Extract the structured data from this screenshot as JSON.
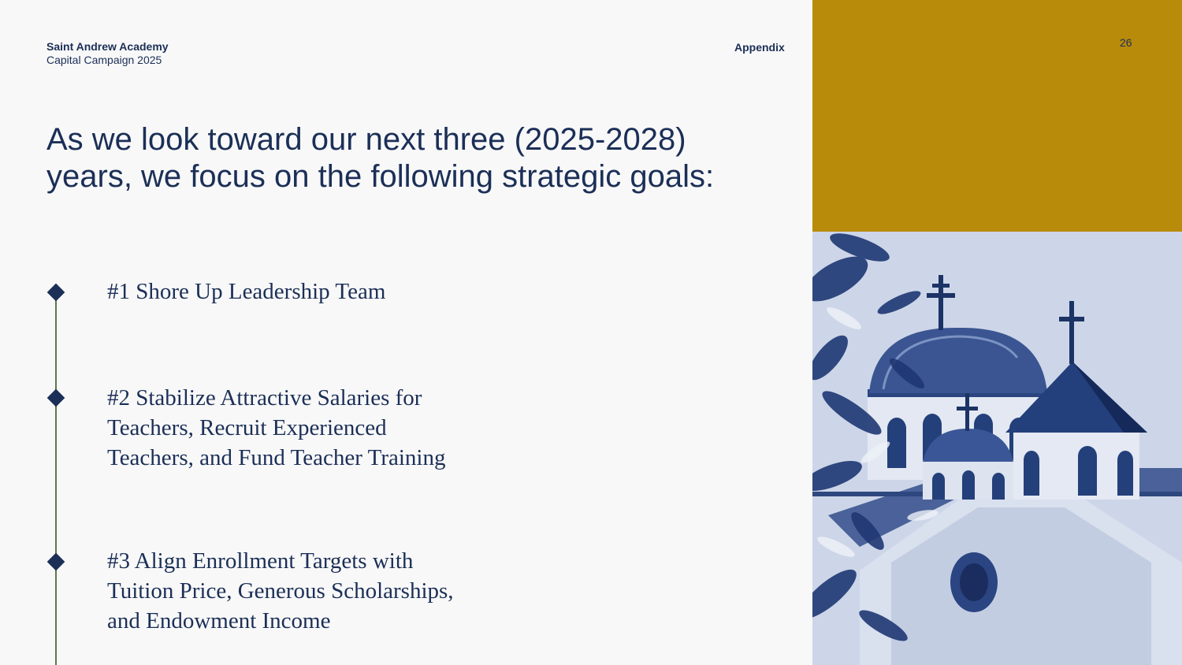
{
  "header": {
    "org_name": "Saint Andrew Academy",
    "org_subtitle": "Capital Campaign 2025",
    "section": "Appendix",
    "page_number": "26"
  },
  "headline": {
    "line1": "As we look toward our next three (2025-2028)",
    "line2": "years, we focus on the following strategic goals:"
  },
  "goals": [
    {
      "lines": [
        "#1 Shore Up Leadership Team"
      ]
    },
    {
      "lines": [
        "#2 Stabilize Attractive Salaries for",
        "Teachers, Recruit Experienced",
        "Teachers, and Fund Teacher Training"
      ]
    },
    {
      "lines": [
        "#3 Align Enrollment Targets with",
        "Tuition Price, Generous Scholarships,",
        "and Endowment Income"
      ]
    }
  ],
  "colors": {
    "navy": "#1b2f57",
    "gold": "#b98b0a",
    "timeline": "#5a7a4a",
    "background": "#f8f8f8"
  }
}
